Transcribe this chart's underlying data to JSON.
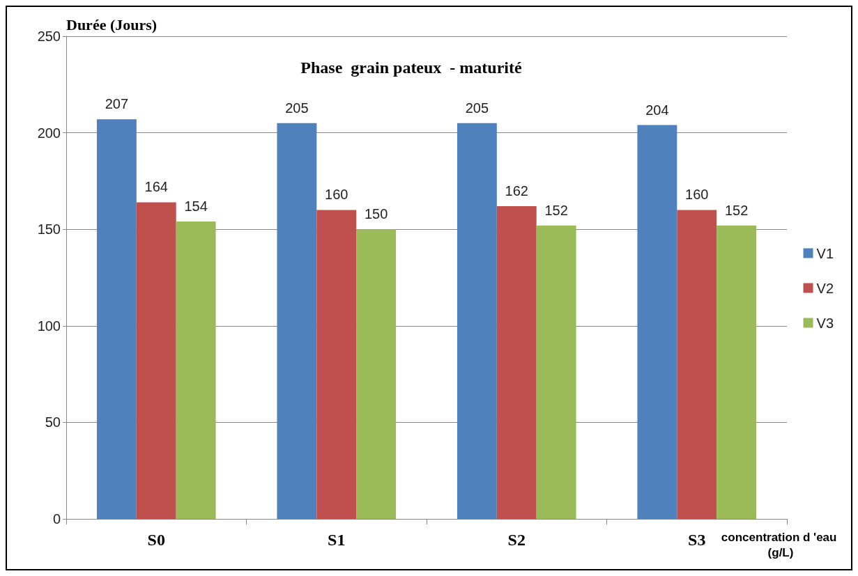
{
  "chart_data": {
    "type": "bar",
    "title": "Phase  grain pateux  - maturité",
    "ylabel": "Durée (Jours)",
    "xlabel": "concentration d 'eau (g/L)",
    "categories": [
      "S0",
      "S1",
      "S2",
      "S3"
    ],
    "series": [
      {
        "name": "V1",
        "color": "#4f81bd",
        "values": [
          207,
          205,
          205,
          204
        ]
      },
      {
        "name": "V2",
        "color": "#c0504d",
        "values": [
          164,
          160,
          162,
          160
        ]
      },
      {
        "name": "V3",
        "color": "#9bbb59",
        "values": [
          154,
          150,
          152,
          152
        ]
      }
    ],
    "ylim": [
      0,
      250
    ],
    "yticks": [
      0,
      50,
      100,
      150,
      200,
      250
    ],
    "grid": "y",
    "legend": "right",
    "data_labels": true
  }
}
